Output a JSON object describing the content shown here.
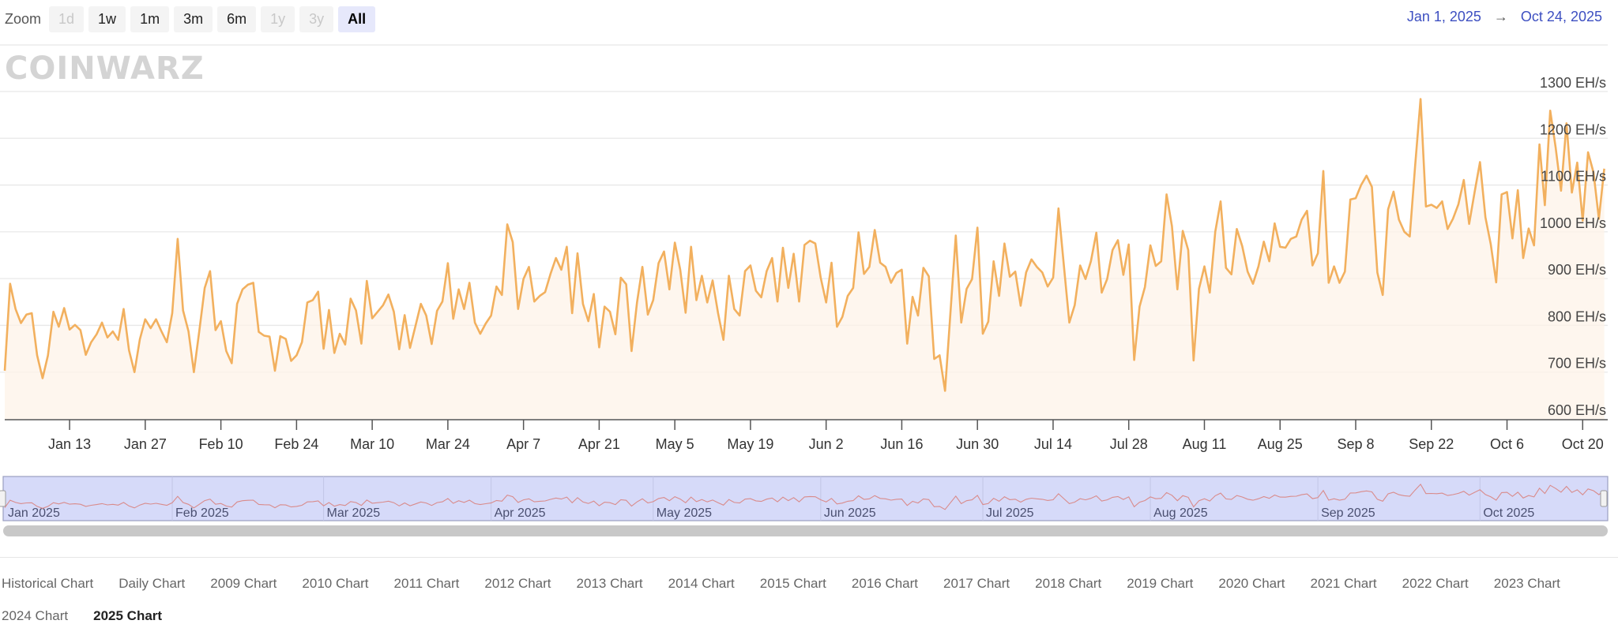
{
  "zoom": {
    "label": "Zoom",
    "buttons": [
      {
        "label": "1d",
        "state": "disabled"
      },
      {
        "label": "1w",
        "state": "enabled"
      },
      {
        "label": "1m",
        "state": "enabled"
      },
      {
        "label": "3m",
        "state": "enabled"
      },
      {
        "label": "6m",
        "state": "enabled"
      },
      {
        "label": "1y",
        "state": "disabled"
      },
      {
        "label": "3y",
        "state": "disabled"
      },
      {
        "label": "All",
        "state": "active"
      }
    ]
  },
  "range": {
    "from": "Jan 1, 2025",
    "arrow": "→",
    "to": "Oct 24, 2025"
  },
  "watermark": "COINWARZ",
  "colors": {
    "line": "#f2b05e",
    "fill": "#fdf3e8",
    "navigator_line": "#d98b8b",
    "navigator_band": "#d6daf9",
    "range_text": "#3d4fc1"
  },
  "chart_data": {
    "type": "area",
    "x_range": [
      "2025-01-01",
      "2025-10-24"
    ],
    "x_interval": "daily",
    "ylim": [
      600,
      1300
    ],
    "y_unit": "EH/s",
    "y_ticks": [
      "600 EH/s",
      "700 EH/s",
      "800 EH/s",
      "900 EH/s",
      "1000 EH/s",
      "1100 EH/s",
      "1200 EH/s",
      "1300 EH/s"
    ],
    "y_tick_values": [
      600,
      700,
      800,
      900,
      1000,
      1100,
      1200,
      1300
    ],
    "x_ticks": [
      "Jan 13",
      "Jan 27",
      "Feb 10",
      "Feb 24",
      "Mar 10",
      "Mar 24",
      "Apr 7",
      "Apr 21",
      "May 5",
      "May 19",
      "Jun 2",
      "Jun 16",
      "Jun 30",
      "Jul 14",
      "Jul 28",
      "Aug 11",
      "Aug 25",
      "Sep 8",
      "Sep 22",
      "Oct 6",
      "Oct 20"
    ],
    "grid": true,
    "navigator_ticks": [
      "Jan 2025",
      "Feb 2025",
      "Mar 2025",
      "Apr 2025",
      "May 2025",
      "Jun 2025",
      "Jul 2025",
      "Aug 2025",
      "Sep 2025",
      "Oct 2025"
    ],
    "values": [
      703,
      889,
      835,
      805,
      823,
      826,
      736,
      687,
      736,
      829,
      797,
      837,
      791,
      801,
      790,
      737,
      764,
      781,
      806,
      774,
      787,
      769,
      835,
      747,
      700,
      770,
      813,
      794,
      813,
      787,
      764,
      826,
      985,
      832,
      787,
      700,
      787,
      880,
      916,
      790,
      809,
      745,
      719,
      846,
      877,
      887,
      891,
      786,
      778,
      776,
      703,
      777,
      771,
      724,
      736,
      764,
      849,
      854,
      872,
      750,
      833,
      741,
      782,
      759,
      857,
      832,
      761,
      895,
      815,
      829,
      843,
      866,
      829,
      749,
      822,
      752,
      798,
      846,
      821,
      760,
      831,
      851,
      933,
      814,
      877,
      835,
      891,
      806,
      782,
      804,
      821,
      883,
      865,
      1016,
      978,
      835,
      899,
      925,
      851,
      863,
      871,
      910,
      944,
      919,
      968,
      826,
      954,
      846,
      809,
      867,
      753,
      840,
      829,
      781,
      902,
      888,
      745,
      849,
      925,
      823,
      854,
      933,
      958,
      877,
      977,
      919,
      827,
      968,
      854,
      906,
      849,
      896,
      826,
      769,
      906,
      835,
      821,
      916,
      928,
      874,
      860,
      916,
      944,
      851,
      966,
      880,
      953,
      851,
      972,
      981,
      975,
      902,
      849,
      934,
      797,
      818,
      863,
      880,
      999,
      910,
      925,
      1004,
      934,
      925,
      891,
      912,
      919,
      761,
      861,
      821,
      923,
      905,
      728,
      736,
      660,
      826,
      992,
      806,
      878,
      899,
      1009,
      782,
      808,
      937,
      863,
      975,
      904,
      915,
      842,
      913,
      941,
      925,
      913,
      883,
      902,
      1050,
      928,
      806,
      843,
      928,
      899,
      937,
      998,
      870,
      899,
      961,
      982,
      908,
      973,
      726,
      840,
      882,
      971,
      927,
      937,
      1080,
      1012,
      877,
      1002,
      961,
      725,
      878,
      926,
      870,
      1000,
      1065,
      923,
      909,
      1006,
      969,
      915,
      889,
      926,
      979,
      937,
      1018,
      968,
      966,
      985,
      990,
      1026,
      1045,
      928,
      954,
      1130,
      891,
      926,
      891,
      915,
      1069,
      1072,
      1100,
      1120,
      1096,
      913,
      865,
      1048,
      1086,
      1026,
      1000,
      990,
      1141,
      1284,
      1054,
      1058,
      1051,
      1065,
      1006,
      1028,
      1059,
      1111,
      1017,
      1085,
      1149,
      1031,
      973,
      892,
      1080,
      1085,
      986,
      1089,
      944,
      1007,
      971,
      1187,
      1057,
      1259,
      1180,
      1088,
      1232,
      1084,
      1148,
      1024,
      1170,
      1127,
      1028,
      1135
    ]
  },
  "links": {
    "row1": [
      "Historical Chart",
      "Daily Chart",
      "2009 Chart",
      "2010 Chart",
      "2011 Chart",
      "2012 Chart",
      "2013 Chart",
      "2014 Chart",
      "2015 Chart",
      "2016 Chart",
      "2017 Chart",
      "2018 Chart",
      "2019 Chart",
      "2020 Chart",
      "2021 Chart",
      "2022 Chart",
      "2023 Chart"
    ],
    "row2": [
      "2024 Chart",
      "2025 Chart"
    ],
    "current": "2025 Chart"
  }
}
